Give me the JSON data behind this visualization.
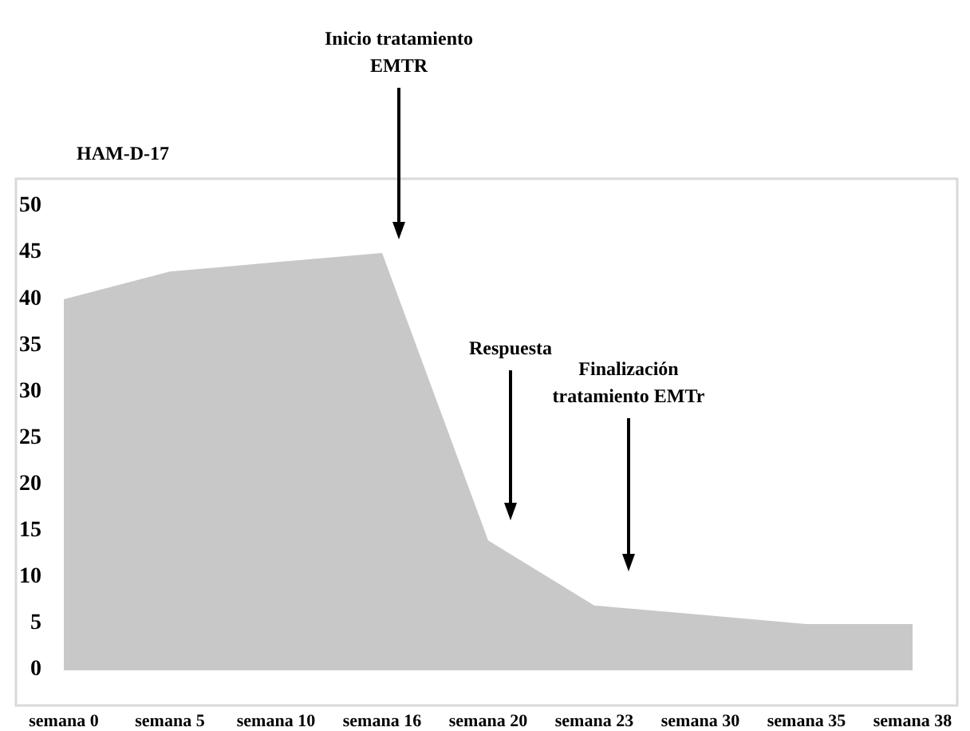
{
  "chart_data": {
    "type": "area",
    "ylabel": "HAM-D-17",
    "categories": [
      "semana 0",
      "semana 5",
      "semana 10",
      "semana 16",
      "semana 20",
      "semana 23",
      "semana 30",
      "semana 35",
      "semana 38"
    ],
    "series": [
      {
        "color": "#c8c8c8",
        "values": [
          40,
          43,
          44,
          45,
          14,
          7,
          6,
          5,
          5
        ]
      }
    ],
    "ylim": [
      0,
      53
    ],
    "yticks": [
      0,
      5,
      10,
      15,
      20,
      25,
      30,
      35,
      40,
      45,
      50
    ],
    "grid": false,
    "annotations": [
      "Inicio tratamiento EMTR",
      "Respuesta",
      "Finalización tratamiento EMTr"
    ]
  }
}
